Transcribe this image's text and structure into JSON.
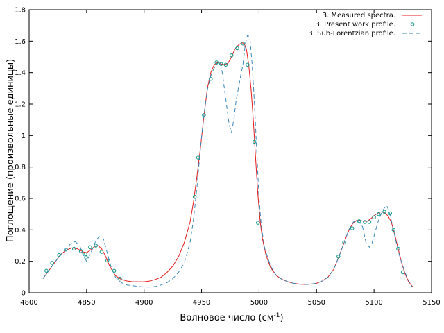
{
  "chart_data": {
    "type": "line",
    "title": "",
    "xlabel": "Волновое число (см",
    "xlabel_sup": "-1",
    "xlabel_close": ")",
    "ylabel": "Поглощение (произвольные единицы)",
    "xlim": [
      4800,
      5150
    ],
    "ylim": [
      0,
      1.8
    ],
    "xticks": [
      4800,
      4850,
      4900,
      4950,
      5000,
      5050,
      5100,
      5150
    ],
    "yticks": [
      0,
      0.2,
      0.4,
      0.6,
      0.8,
      1,
      1.2,
      1.4,
      1.6,
      1.8
    ],
    "grid": false,
    "legend_position": "top-right",
    "series": [
      {
        "name": "3. Measured spectra.",
        "style": "line",
        "color": "#e41a1c",
        "x": [
          4812,
          4817,
          4822,
          4827,
          4832,
          4837,
          4842,
          4847,
          4850,
          4853,
          4857,
          4860,
          4863,
          4866,
          4870,
          4875,
          4880,
          4885,
          4890,
          4895,
          4900,
          4905,
          4910,
          4915,
          4920,
          4925,
          4930,
          4935,
          4940,
          4943,
          4946,
          4949,
          4952,
          4955,
          4958,
          4961,
          4964,
          4967,
          4970,
          4973,
          4976,
          4979,
          4982,
          4985,
          4987,
          4989,
          4991,
          4993,
          4995,
          4997,
          4999,
          5001,
          5003,
          5006,
          5010,
          5015,
          5020,
          5025,
          5030,
          5035,
          5040,
          5045,
          5050,
          5055,
          5060,
          5065,
          5070,
          5073,
          5076,
          5079,
          5082,
          5085,
          5088,
          5091,
          5094,
          5097,
          5100,
          5103,
          5106,
          5109,
          5112,
          5115,
          5118,
          5121,
          5124,
          5127,
          5130,
          5134
        ],
        "y": [
          0.09,
          0.14,
          0.19,
          0.24,
          0.27,
          0.285,
          0.28,
          0.26,
          0.255,
          0.27,
          0.295,
          0.3,
          0.28,
          0.24,
          0.17,
          0.11,
          0.085,
          0.075,
          0.07,
          0.07,
          0.07,
          0.075,
          0.085,
          0.1,
          0.13,
          0.17,
          0.23,
          0.32,
          0.45,
          0.58,
          0.74,
          0.92,
          1.12,
          1.3,
          1.4,
          1.45,
          1.465,
          1.455,
          1.45,
          1.46,
          1.5,
          1.55,
          1.575,
          1.59,
          1.585,
          1.55,
          1.45,
          1.3,
          1.1,
          0.85,
          0.62,
          0.45,
          0.34,
          0.24,
          0.16,
          0.11,
          0.085,
          0.07,
          0.06,
          0.055,
          0.053,
          0.055,
          0.06,
          0.075,
          0.1,
          0.15,
          0.24,
          0.3,
          0.36,
          0.41,
          0.445,
          0.46,
          0.46,
          0.455,
          0.455,
          0.47,
          0.49,
          0.505,
          0.515,
          0.51,
          0.49,
          0.45,
          0.37,
          0.28,
          0.19,
          0.12,
          0.07,
          0.035
        ]
      },
      {
        "name": "3. Present work profile.",
        "style": "points",
        "color": "#1a9e8f",
        "x": [
          4815,
          4820,
          4826,
          4832,
          4839,
          4845,
          4849,
          4849.5,
          4853,
          4858,
          4863,
          4868,
          4874,
          4879,
          4944,
          4947,
          4952,
          4958,
          4963,
          4967,
          4971,
          4976,
          4981,
          4986,
          4990,
          4996,
          4999,
          5069,
          5074,
          5081,
          5087,
          5092,
          5096,
          5100,
          5104,
          5109,
          5114,
          5117,
          5121,
          5125
        ],
        "y": [
          0.14,
          0.19,
          0.24,
          0.275,
          0.28,
          0.265,
          0.245,
          0.225,
          0.29,
          0.3,
          0.26,
          0.205,
          0.14,
          0.09,
          0.61,
          0.86,
          1.13,
          1.36,
          1.465,
          1.455,
          1.45,
          1.51,
          1.555,
          1.585,
          1.45,
          0.96,
          0.445,
          0.23,
          0.32,
          0.41,
          0.455,
          0.45,
          0.45,
          0.48,
          0.5,
          0.515,
          0.505,
          0.4,
          0.28,
          0.13
        ]
      },
      {
        "name": "3. Sub-Lorentzian profile.",
        "style": "dashed",
        "color": "#3a86b8",
        "x": [
          4812,
          4817,
          4822,
          4827,
          4832,
          4836,
          4840,
          4844,
          4847,
          4850,
          4854,
          4858,
          4861,
          4864,
          4867,
          4871,
          4875,
          4880,
          4885,
          4890,
          4895,
          4900,
          4905,
          4910,
          4915,
          4920,
          4925,
          4930,
          4935,
          4940,
          4943,
          4946,
          4949,
          4952,
          4955,
          4958,
          4961,
          4964,
          4966,
          4968,
          4970,
          4972,
          4974,
          4976,
          4978,
          4980,
          4982,
          4984,
          4986,
          4988,
          4990,
          4992,
          4994,
          4996,
          4998,
          5000,
          5002,
          5005,
          5010,
          5015,
          5020,
          5025,
          5030,
          5035,
          5040,
          5045,
          5050,
          5055,
          5060,
          5065,
          5070,
          5074,
          5078,
          5082,
          5086,
          5090,
          5093,
          5096,
          5098,
          5100,
          5103,
          5106,
          5109,
          5111,
          5113,
          5116,
          5119,
          5122,
          5125,
          5129,
          5133
        ],
        "y": [
          0.09,
          0.14,
          0.19,
          0.24,
          0.28,
          0.31,
          0.325,
          0.3,
          0.24,
          0.2,
          0.26,
          0.33,
          0.36,
          0.355,
          0.28,
          0.17,
          0.1,
          0.065,
          0.05,
          0.045,
          0.04,
          0.037,
          0.037,
          0.04,
          0.05,
          0.065,
          0.09,
          0.13,
          0.19,
          0.32,
          0.47,
          0.67,
          0.92,
          1.13,
          1.29,
          1.38,
          1.43,
          1.46,
          1.47,
          1.4,
          1.29,
          1.18,
          1.07,
          1.02,
          1.1,
          1.22,
          1.3,
          1.38,
          1.45,
          1.58,
          1.64,
          1.62,
          1.45,
          1.2,
          0.9,
          0.6,
          0.42,
          0.28,
          0.17,
          0.11,
          0.085,
          0.07,
          0.06,
          0.055,
          0.052,
          0.055,
          0.06,
          0.075,
          0.1,
          0.15,
          0.24,
          0.32,
          0.4,
          0.45,
          0.46,
          0.42,
          0.32,
          0.29,
          0.31,
          0.36,
          0.44,
          0.5,
          0.54,
          0.555,
          0.52,
          0.43,
          0.33,
          0.24,
          0.17,
          0.09,
          0.04
        ]
      }
    ]
  }
}
